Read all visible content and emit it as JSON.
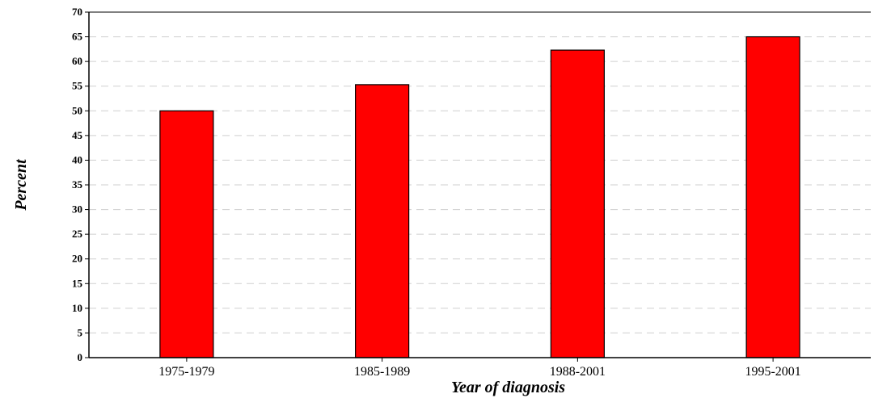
{
  "chart_data": {
    "type": "bar",
    "title": "",
    "xlabel": "Year of diagnosis",
    "ylabel": "Percent",
    "categories": [
      "1975-1979",
      "1985-1989",
      "1988-2001",
      "1995-2001"
    ],
    "values": [
      50,
      55.3,
      62.3,
      65
    ],
    "ylim": [
      0,
      70
    ],
    "yticks": [
      0,
      5,
      10,
      15,
      20,
      25,
      30,
      35,
      40,
      45,
      50,
      55,
      60,
      65,
      70
    ],
    "grid": "horizontal dashed",
    "bar_color": "#ff0000",
    "bar_edge_color": "#000000",
    "legend": "none"
  }
}
